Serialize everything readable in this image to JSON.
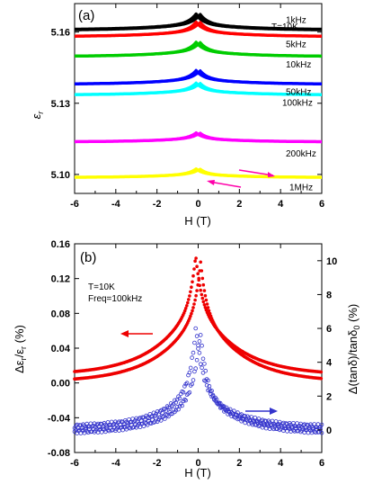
{
  "chart_data": [
    {
      "type": "line",
      "panel_label": "(a)",
      "xlabel": "H  (T)",
      "ylabel": "ε_r",
      "xlim": [
        -6,
        6
      ],
      "xticks": [
        "-6",
        "-4",
        "-2",
        "0",
        "2",
        "4",
        "6"
      ],
      "ylim": [
        5.092,
        5.172
      ],
      "yticks": [
        {
          "value": 5.16,
          "label": "5.16"
        },
        {
          "value": 5.13,
          "label": "5.13"
        },
        {
          "value": 5.1,
          "label": "5.10"
        }
      ],
      "temperature_label": "T=10K",
      "grid": false,
      "series": [
        {
          "name": "1kHz",
          "color": "#000000",
          "base": 5.1609,
          "peak": 5.1675
        },
        {
          "name": "5kHz",
          "color": "#ff0000",
          "base": 5.1581,
          "peak": 5.1642
        },
        {
          "name": "10kHz",
          "color": "#00cc00",
          "base": 5.1497,
          "peak": 5.1557
        },
        {
          "name": "50kHz",
          "color": "#0000ff",
          "base": 5.138,
          "peak": 5.1438
        },
        {
          "name": "100kHz",
          "color": "#00ffff",
          "base": 5.1335,
          "peak": 5.1385
        },
        {
          "name": "200kHz",
          "color": "#ff00ff",
          "base": 5.1137,
          "peak": 5.1175
        },
        {
          "name": "1MHz",
          "color": "#ffff00",
          "base": 5.0987,
          "peak": 5.1023
        }
      ],
      "sweep_arrows_color": "#ff00aa"
    },
    {
      "type": "line",
      "panel_label": "(b)",
      "xlabel": "H (T)",
      "ylabel_left": "Δε_r/ε_r (%)",
      "ylabel_right": "Δ(tanδ)/tanδ_0  (%)",
      "xlim": [
        -6,
        6
      ],
      "xticks": [
        "-6",
        "-4",
        "-2",
        "0",
        "2",
        "4",
        "6"
      ],
      "ylim_left": [
        -0.08,
        0.16
      ],
      "yticks_left": [
        "0.16",
        "0.12",
        "0.08",
        "0.04",
        "0.00",
        "-0.04",
        "-0.08"
      ],
      "ylim_right": [
        -1.333,
        11.0
      ],
      "yticks_right": [
        "10",
        "8",
        "6",
        "4",
        "2",
        "0"
      ],
      "annotations": [
        "T=10K",
        "Freq=100kHz"
      ],
      "grid": false,
      "series": [
        {
          "name": "Δε_r/ε_r",
          "axis": "left",
          "color": "#ee0000",
          "marker": "filled-circle",
          "peak": 0.143,
          "at_6T": 0.005
        },
        {
          "name": "Δ(tanδ)/tanδ_0",
          "axis": "right",
          "color": "#3333cc",
          "marker": "open-circle",
          "peak": 6.0,
          "at_6T": 0.0
        }
      ]
    }
  ]
}
